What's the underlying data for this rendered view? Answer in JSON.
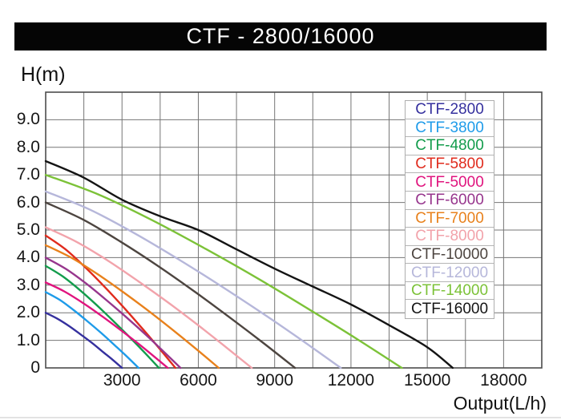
{
  "title": "CTF - 2800/16000",
  "y_axis_title": "H(m)",
  "x_axis_title": "Output(L/h)",
  "chart_data": {
    "type": "line",
    "title": "CTF - 2800/16000",
    "xlabel": "Output(L/h)",
    "ylabel": "H(m)",
    "xlim": [
      0,
      19500
    ],
    "ylim": [
      0,
      10
    ],
    "grid": true,
    "x_gridline_step": 1500,
    "y_gridline_step": 1,
    "legend_position": "top-right",
    "x_tick_values": [
      3000,
      6000,
      9000,
      12000,
      15000,
      18000
    ],
    "x_tick_labels": [
      "3000",
      "6000",
      "9000",
      "12000",
      "15000",
      "18000"
    ],
    "y_tick_values": [
      9,
      8,
      7,
      6,
      5,
      4,
      3,
      2,
      1,
      0
    ],
    "y_tick_labels": [
      "9.0",
      "8.0",
      "7.0",
      "6.0",
      "5.0",
      "4.0",
      "3.0",
      "2.0",
      "1.0",
      "0"
    ],
    "series": [
      {
        "name": "CTF-2800",
        "color": "#35309E",
        "max_head_m": 2.0,
        "max_flow_lh": 3000,
        "points": [
          [
            0,
            2.0
          ],
          [
            450,
            1.79
          ],
          [
            900,
            1.53
          ],
          [
            1350,
            1.23
          ],
          [
            1800,
            0.92
          ],
          [
            2250,
            0.58
          ],
          [
            2625,
            0.3
          ],
          [
            3000,
            0
          ]
        ]
      },
      {
        "name": "CTF-3800",
        "color": "#1E9BE9",
        "max_head_m": 2.75,
        "max_flow_lh": 3650,
        "points": [
          [
            0,
            2.75
          ],
          [
            548,
            2.47
          ],
          [
            1095,
            2.1
          ],
          [
            1643,
            1.69
          ],
          [
            2190,
            1.26
          ],
          [
            2738,
            0.8
          ],
          [
            3194,
            0.41
          ],
          [
            3650,
            0
          ]
        ]
      },
      {
        "name": "CTF-4800",
        "color": "#139C4C",
        "max_head_m": 3.7,
        "max_flow_lh": 4450,
        "points": [
          [
            0,
            3.7
          ],
          [
            668,
            3.32
          ],
          [
            1335,
            2.83
          ],
          [
            2003,
            2.28
          ],
          [
            2670,
            1.69
          ],
          [
            3338,
            1.08
          ],
          [
            3894,
            0.55
          ],
          [
            4450,
            0
          ]
        ]
      },
      {
        "name": "CTF-5800",
        "color": "#E02B1D",
        "max_head_m": 4.8,
        "max_flow_lh": 5100,
        "points": [
          [
            0,
            4.8
          ],
          [
            765,
            4.31
          ],
          [
            1530,
            3.67
          ],
          [
            2295,
            2.96
          ],
          [
            3060,
            2.2
          ],
          [
            3825,
            1.4
          ],
          [
            4463,
            0.71
          ],
          [
            5100,
            0
          ]
        ]
      },
      {
        "name": "CTF-5000",
        "color": "#E0147E",
        "max_head_m": 3.1,
        "max_flow_lh": 4800,
        "points": [
          [
            0,
            3.1
          ],
          [
            720,
            2.78
          ],
          [
            1440,
            2.37
          ],
          [
            2160,
            1.91
          ],
          [
            2880,
            1.42
          ],
          [
            3600,
            0.91
          ],
          [
            4200,
            0.46
          ],
          [
            4800,
            0
          ]
        ]
      },
      {
        "name": "CTF-6000",
        "color": "#97368D",
        "max_head_m": 4.0,
        "max_flow_lh": 5300,
        "points": [
          [
            0,
            4.0
          ],
          [
            795,
            3.59
          ],
          [
            1590,
            3.06
          ],
          [
            2385,
            2.46
          ],
          [
            3180,
            1.83
          ],
          [
            3975,
            1.17
          ],
          [
            4638,
            0.59
          ],
          [
            5300,
            0
          ]
        ]
      },
      {
        "name": "CTF-7000",
        "color": "#E8811C",
        "max_head_m": 4.45,
        "max_flow_lh": 6800,
        "points": [
          [
            0,
            4.45
          ],
          [
            1020,
            3.99
          ],
          [
            2040,
            3.4
          ],
          [
            3060,
            2.74
          ],
          [
            4080,
            2.04
          ],
          [
            5100,
            1.3
          ],
          [
            5950,
            0.66
          ],
          [
            6800,
            0
          ]
        ]
      },
      {
        "name": "CTF-8000",
        "color": "#F2A3AB",
        "max_head_m": 5.1,
        "max_flow_lh": 8100,
        "points": [
          [
            0,
            5.1
          ],
          [
            1215,
            4.57
          ],
          [
            2430,
            3.9
          ],
          [
            3645,
            3.14
          ],
          [
            4860,
            2.34
          ],
          [
            6075,
            1.49
          ],
          [
            7088,
            0.75
          ],
          [
            8100,
            0
          ]
        ]
      },
      {
        "name": "CTF-10000",
        "color": "#4D4540",
        "max_head_m": 6.0,
        "max_flow_lh": 9800,
        "points": [
          [
            0,
            6.0
          ],
          [
            1470,
            5.38
          ],
          [
            2940,
            4.58
          ],
          [
            4410,
            3.7
          ],
          [
            5880,
            2.75
          ],
          [
            7350,
            1.75
          ],
          [
            8575,
            0.89
          ],
          [
            9800,
            0
          ]
        ]
      },
      {
        "name": "CTF-12000",
        "color": "#B6B7DA",
        "max_head_m": 6.4,
        "max_flow_lh": 11600,
        "points": [
          [
            0,
            6.4
          ],
          [
            1740,
            5.74
          ],
          [
            3480,
            4.89
          ],
          [
            5220,
            3.94
          ],
          [
            6960,
            2.93
          ],
          [
            8700,
            1.87
          ],
          [
            10150,
            0.95
          ],
          [
            11600,
            0
          ]
        ]
      },
      {
        "name": "CTF-14000",
        "color": "#7CC238",
        "max_head_m": 7.0,
        "max_flow_lh": 14000,
        "points": [
          [
            0,
            7.0
          ],
          [
            2100,
            6.28
          ],
          [
            4200,
            5.35
          ],
          [
            6300,
            4.31
          ],
          [
            8400,
            3.21
          ],
          [
            10500,
            2.04
          ],
          [
            12250,
            1.04
          ],
          [
            14000,
            0
          ]
        ]
      },
      {
        "name": "CTF-16000",
        "color": "#141414",
        "max_head_m": 7.5,
        "max_flow_lh": 16000,
        "points": [
          [
            0,
            7.5
          ],
          [
            1500,
            6.9
          ],
          [
            3000,
            6.1
          ],
          [
            4500,
            5.5
          ],
          [
            6000,
            5.0
          ],
          [
            7500,
            4.3
          ],
          [
            9000,
            3.6
          ],
          [
            10500,
            2.95
          ],
          [
            12000,
            2.3
          ],
          [
            13500,
            1.55
          ],
          [
            15000,
            0.75
          ],
          [
            16000,
            0
          ]
        ]
      }
    ]
  }
}
